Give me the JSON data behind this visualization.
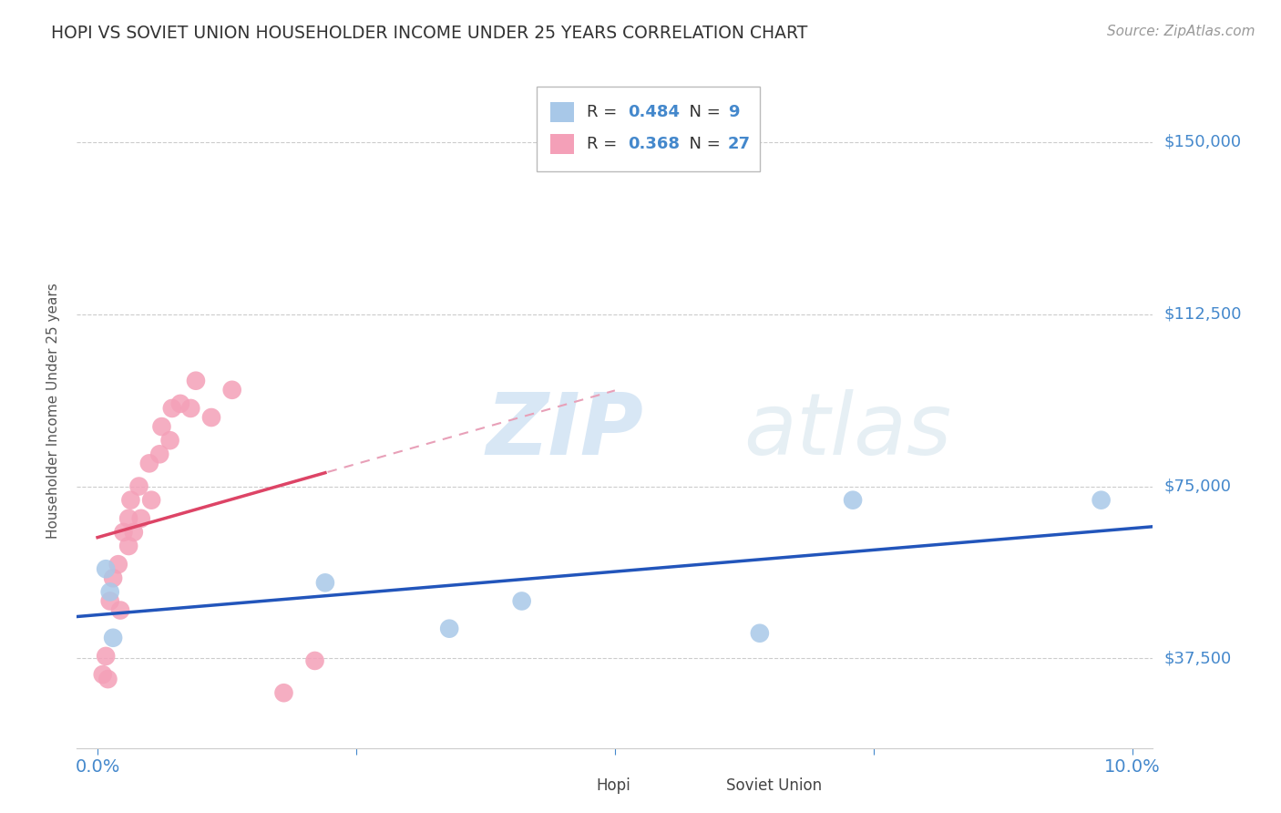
{
  "title": "HOPI VS SOVIET UNION HOUSEHOLDER INCOME UNDER 25 YEARS CORRELATION CHART",
  "source": "Source: ZipAtlas.com",
  "ylabel": "Householder Income Under 25 years",
  "xlim": [
    -0.002,
    0.102
  ],
  "ylim": [
    18000,
    165000
  ],
  "yticks": [
    37500,
    75000,
    112500,
    150000
  ],
  "ytick_labels": [
    "$37,500",
    "$75,000",
    "$112,500",
    "$150,000"
  ],
  "xticks": [
    0.0,
    0.025,
    0.05,
    0.075,
    0.1
  ],
  "xtick_labels": [
    "0.0%",
    "",
    "",
    "",
    "10.0%"
  ],
  "hopi_R": 0.484,
  "hopi_N": 9,
  "soviet_R": 0.368,
  "soviet_N": 27,
  "hopi_color": "#a8c8e8",
  "soviet_color": "#f4a0b8",
  "hopi_line_color": "#2255bb",
  "soviet_line_color": "#dd4466",
  "soviet_dashed_color": "#e8a0b8",
  "background_color": "#ffffff",
  "grid_color": "#cccccc",
  "title_color": "#333333",
  "axis_label_color": "#4488cc",
  "watermark": "ZIPatlas",
  "hopi_x": [
    0.0008,
    0.0012,
    0.0015,
    0.022,
    0.034,
    0.041,
    0.064,
    0.073,
    0.097
  ],
  "hopi_y": [
    57000,
    52000,
    42000,
    54000,
    44000,
    50000,
    43000,
    72000,
    72000
  ],
  "soviet_x": [
    0.0005,
    0.0008,
    0.001,
    0.0012,
    0.0015,
    0.002,
    0.0022,
    0.0025,
    0.003,
    0.003,
    0.0032,
    0.0035,
    0.004,
    0.0042,
    0.005,
    0.0052,
    0.006,
    0.0062,
    0.007,
    0.0072,
    0.008,
    0.009,
    0.0095,
    0.011,
    0.013,
    0.018,
    0.021
  ],
  "soviet_y": [
    34000,
    38000,
    33000,
    50000,
    55000,
    58000,
    48000,
    65000,
    62000,
    68000,
    72000,
    65000,
    75000,
    68000,
    80000,
    72000,
    82000,
    88000,
    85000,
    92000,
    93000,
    92000,
    98000,
    90000,
    96000,
    30000,
    37000
  ]
}
